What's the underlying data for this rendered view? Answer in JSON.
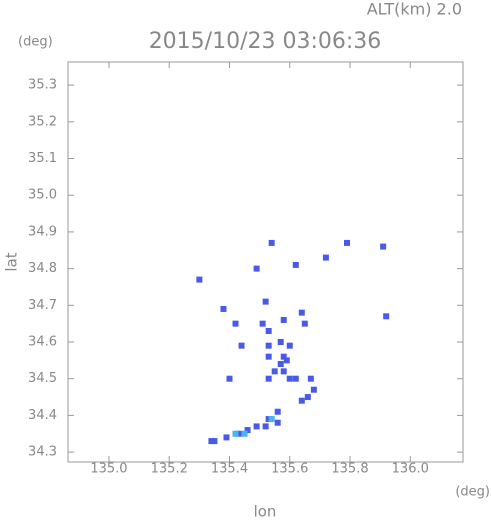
{
  "chart_data": {
    "type": "scatter",
    "title": "2015/10/23 03:06:36",
    "subtitle": "ALT(km) 2.0",
    "x_label": "lon",
    "y_label": "lat",
    "x_unit": "(deg)",
    "y_unit": "(deg)",
    "xlim": [
      134.864,
      136.175
    ],
    "ylim": [
      34.273,
      35.363
    ],
    "xticks": [
      {
        "value": 135.0,
        "label": "135.0"
      },
      135.2,
      135.4,
      135.6,
      135.8,
      {
        "value": 136.0,
        "label": "136.0"
      }
    ],
    "yticks": [
      34.3,
      34.4,
      34.5,
      34.6,
      34.7,
      34.8,
      34.9,
      {
        "value": 35.0,
        "label": "35.0"
      },
      35.1,
      35.2,
      35.3
    ],
    "series": [
      {
        "color": "#4a5ae8",
        "x": [
          135.54,
          135.79,
          135.91,
          135.72,
          135.62,
          135.49,
          135.3,
          135.52,
          135.38,
          135.42,
          135.51,
          135.53,
          135.58,
          135.64,
          135.65,
          135.92,
          135.44,
          135.53,
          135.57,
          135.6,
          135.53,
          135.58,
          135.59,
          135.57,
          135.55,
          135.58,
          135.53,
          135.6,
          135.62,
          135.4,
          135.67,
          135.68,
          135.64,
          135.66,
          135.56,
          135.53,
          135.56,
          135.52,
          135.49,
          135.46,
          135.43,
          135.39,
          135.35,
          135.34
        ],
        "values": [
          34.87,
          34.87,
          34.86,
          34.83,
          34.81,
          34.8,
          34.77,
          34.71,
          34.69,
          34.65,
          34.65,
          34.63,
          34.66,
          34.68,
          34.65,
          34.67,
          34.59,
          34.59,
          34.6,
          34.59,
          34.56,
          34.56,
          34.55,
          34.54,
          34.52,
          34.52,
          34.5,
          34.5,
          34.5,
          34.5,
          34.5,
          34.47,
          34.44,
          34.45,
          34.41,
          34.39,
          34.38,
          34.37,
          34.37,
          34.36,
          34.35,
          34.34,
          34.33,
          34.33
        ]
      },
      {
        "color": "#4ab4f0",
        "x": [
          135.42,
          135.54,
          135.45
        ],
        "values": [
          34.35,
          34.39,
          34.35
        ]
      }
    ]
  }
}
